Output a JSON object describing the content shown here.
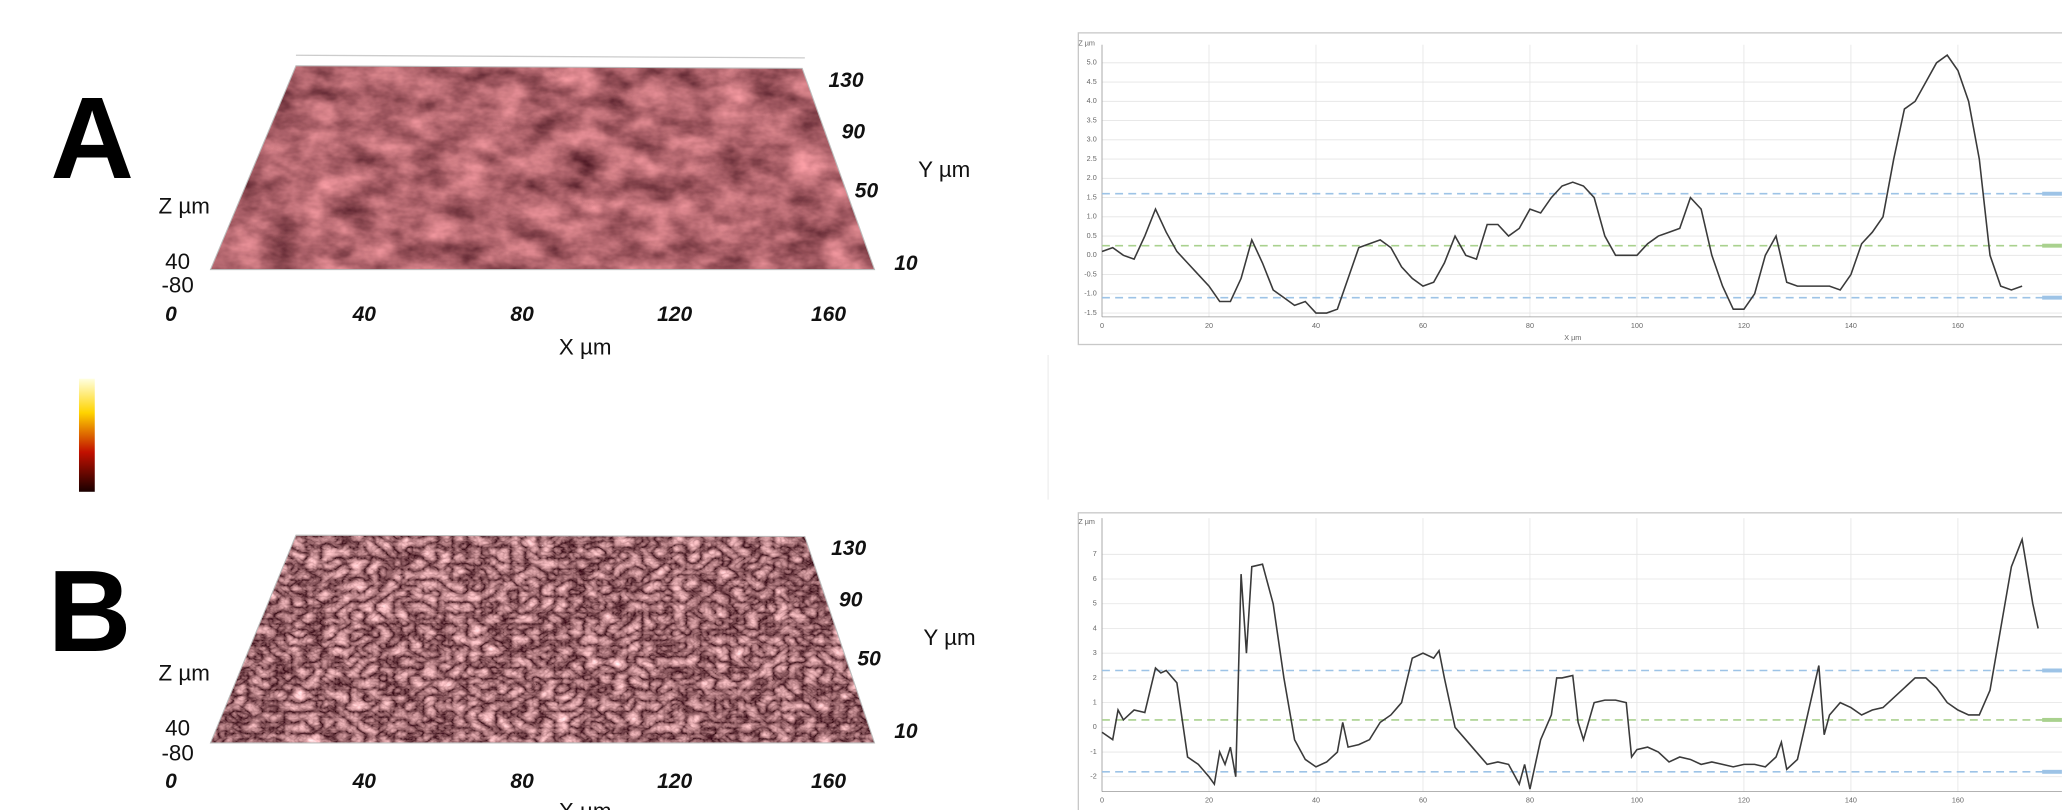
{
  "chart_data": [
    {
      "type": "line",
      "ylabel": "Z µm",
      "xlabel": "X µm",
      "x": [
        0,
        2,
        4,
        6,
        8,
        10,
        12,
        14,
        16,
        18,
        20,
        22,
        24,
        26,
        28,
        30,
        32,
        34,
        36,
        38,
        40,
        42,
        44,
        46,
        48,
        50,
        52,
        54,
        56,
        58,
        60,
        62,
        64,
        66,
        68,
        70,
        72,
        74,
        76,
        78,
        80,
        82,
        84,
        86,
        88,
        90,
        92,
        94,
        96,
        98,
        100,
        102,
        104,
        106,
        108,
        110,
        112,
        114,
        116,
        118,
        120,
        122,
        124,
        126,
        128,
        130,
        132,
        134,
        136,
        138,
        140,
        142,
        144,
        146,
        148,
        150,
        152,
        154,
        156,
        158,
        160,
        162,
        164,
        166,
        168,
        170,
        172
      ],
      "series": [
        {
          "color": "#3a3a3a",
          "values": [
            0.1,
            0.2,
            0.0,
            -0.1,
            0.5,
            1.2,
            0.6,
            0.1,
            -0.2,
            -0.5,
            -0.8,
            -1.2,
            -1.2,
            -0.6,
            0.4,
            -0.2,
            -0.9,
            -1.1,
            -1.3,
            -1.2,
            -1.5,
            -1.5,
            -1.4,
            -0.6,
            0.2,
            0.3,
            0.4,
            0.2,
            -0.3,
            -0.6,
            -0.8,
            -0.7,
            -0.2,
            0.5,
            0.0,
            -0.1,
            0.8,
            0.8,
            0.5,
            0.7,
            1.2,
            1.1,
            1.5,
            1.8,
            1.9,
            1.8,
            1.5,
            0.5,
            0.0,
            0.0,
            0.0,
            0.3,
            0.5,
            0.6,
            0.7,
            1.5,
            1.2,
            0.0,
            -0.8,
            -1.4,
            -1.4,
            -1.0,
            0.0,
            0.5,
            -0.7,
            -0.8,
            -0.8,
            -0.8,
            -0.8,
            -0.9,
            -0.5,
            0.3,
            0.6,
            1.0,
            2.5,
            3.8,
            4.0,
            4.5,
            5.0,
            5.2,
            4.8,
            4.0,
            2.5,
            0.0,
            -0.8,
            -0.9,
            -0.8
          ]
        }
      ],
      "xlim": [
        0,
        176
      ],
      "xticks": [
        0,
        20,
        40,
        60,
        80,
        100,
        120,
        140,
        160
      ],
      "ylim": [
        -1.6,
        5.3
      ],
      "yticks": [
        -1.5,
        {
          "value": -1,
          "label": "-1.0"
        },
        -0.5,
        {
          "value": 0,
          "label": "0.0"
        },
        0.5,
        {
          "value": 1,
          "label": "1.0"
        },
        1.5,
        {
          "value": 2,
          "label": "2.0"
        },
        2.5,
        {
          "value": 3,
          "label": "3.0"
        },
        3.5,
        {
          "value": 4,
          "label": "4.0"
        },
        4.5,
        {
          "value": 5,
          "label": "5.0"
        }
      ],
      "grid": true,
      "reference_lines": [
        {
          "value": 1.6,
          "color": "#9dc3e6"
        },
        {
          "value": 0.25,
          "color": "#a9d18e"
        },
        {
          "value": -1.1,
          "color": "#9dc3e6"
        }
      ]
    },
    {
      "type": "line",
      "ylabel": "Z µm",
      "x": [
        0,
        2,
        3,
        4,
        5,
        6,
        8,
        10,
        11,
        12,
        14,
        16,
        18,
        20,
        21,
        22,
        23,
        24,
        25,
        26,
        27,
        28,
        30,
        32,
        34,
        36,
        38,
        40,
        42,
        44,
        45,
        46,
        48,
        50,
        52,
        54,
        56,
        58,
        60,
        62,
        63,
        64,
        66,
        68,
        70,
        72,
        74,
        76,
        78,
        79,
        80,
        82,
        84,
        85,
        86,
        88,
        89,
        90,
        92,
        94,
        96,
        98,
        99,
        100,
        102,
        104,
        106,
        108,
        110,
        112,
        114,
        116,
        118,
        120,
        122,
        124,
        126,
        127,
        128,
        130,
        134,
        135,
        136,
        138,
        140,
        142,
        144,
        146,
        148,
        150,
        152,
        154,
        156,
        158,
        160,
        162,
        164,
        166,
        168,
        170,
        172,
        174,
        175
      ],
      "series": [
        {
          "color": "#3a3a3a",
          "values": [
            -0.2,
            -0.5,
            0.7,
            0.3,
            0.5,
            0.7,
            0.6,
            2.4,
            2.2,
            2.3,
            1.8,
            -1.2,
            -1.5,
            -2.0,
            -2.3,
            -1.0,
            -1.5,
            -0.8,
            -2.0,
            6.2,
            3.0,
            6.5,
            6.6,
            5.0,
            2.0,
            -0.5,
            -1.3,
            -1.6,
            -1.4,
            -1.0,
            0.2,
            -0.8,
            -0.7,
            -0.5,
            0.2,
            0.5,
            1.0,
            2.8,
            3.0,
            2.8,
            3.1,
            2.0,
            0.0,
            -0.5,
            -1.0,
            -1.5,
            -1.4,
            -1.5,
            -2.3,
            -1.5,
            -2.5,
            -0.5,
            0.5,
            2.0,
            2.0,
            2.1,
            0.2,
            -0.5,
            1.0,
            1.1,
            1.1,
            1.0,
            -1.2,
            -0.9,
            -0.8,
            -1.0,
            -1.4,
            -1.2,
            -1.3,
            -1.5,
            -1.4,
            -1.5,
            -1.6,
            -1.5,
            -1.5,
            -1.6,
            -1.2,
            -0.6,
            -1.7,
            -1.3,
            2.5,
            -0.3,
            0.5,
            1.0,
            0.8,
            0.5,
            0.7,
            0.8,
            1.2,
            1.6,
            2.0,
            2.0,
            1.6,
            1.0,
            0.7,
            0.5,
            0.5,
            1.5,
            4.0,
            6.5,
            7.6,
            5.0,
            4.0
          ]
        }
      ],
      "xlim": [
        0,
        176
      ],
      "xticks": [
        0,
        20,
        40,
        60,
        80,
        100,
        120,
        140,
        160
      ],
      "ylim": [
        -2.6,
        8.2
      ],
      "yticks": [
        -2,
        -1,
        0,
        1,
        2,
        3,
        4,
        5,
        6,
        7
      ],
      "grid": true,
      "reference_lines": [
        {
          "value": 2.3,
          "color": "#9dc3e6"
        },
        {
          "value": 0.3,
          "color": "#a9d18e"
        },
        {
          "value": -1.8,
          "color": "#9dc3e6"
        }
      ]
    }
  ],
  "surfaces": [
    {
      "panel_label": "A",
      "z_label": "Z µm",
      "y_label": "Y µm",
      "x_label": "X µm",
      "z_ticks": [
        40,
        -80
      ],
      "y_ticks": [
        130,
        90,
        50,
        10
      ],
      "x_ticks": [
        0,
        40,
        80,
        120,
        160
      ]
    },
    {
      "panel_label": "B",
      "z_label": "Z µm",
      "y_label": "Y µm",
      "x_label": "X µm",
      "z_ticks": [
        40,
        -80
      ],
      "y_ticks": [
        130,
        90,
        50,
        10
      ],
      "x_ticks": [
        0,
        40,
        80,
        120,
        160
      ]
    }
  ]
}
